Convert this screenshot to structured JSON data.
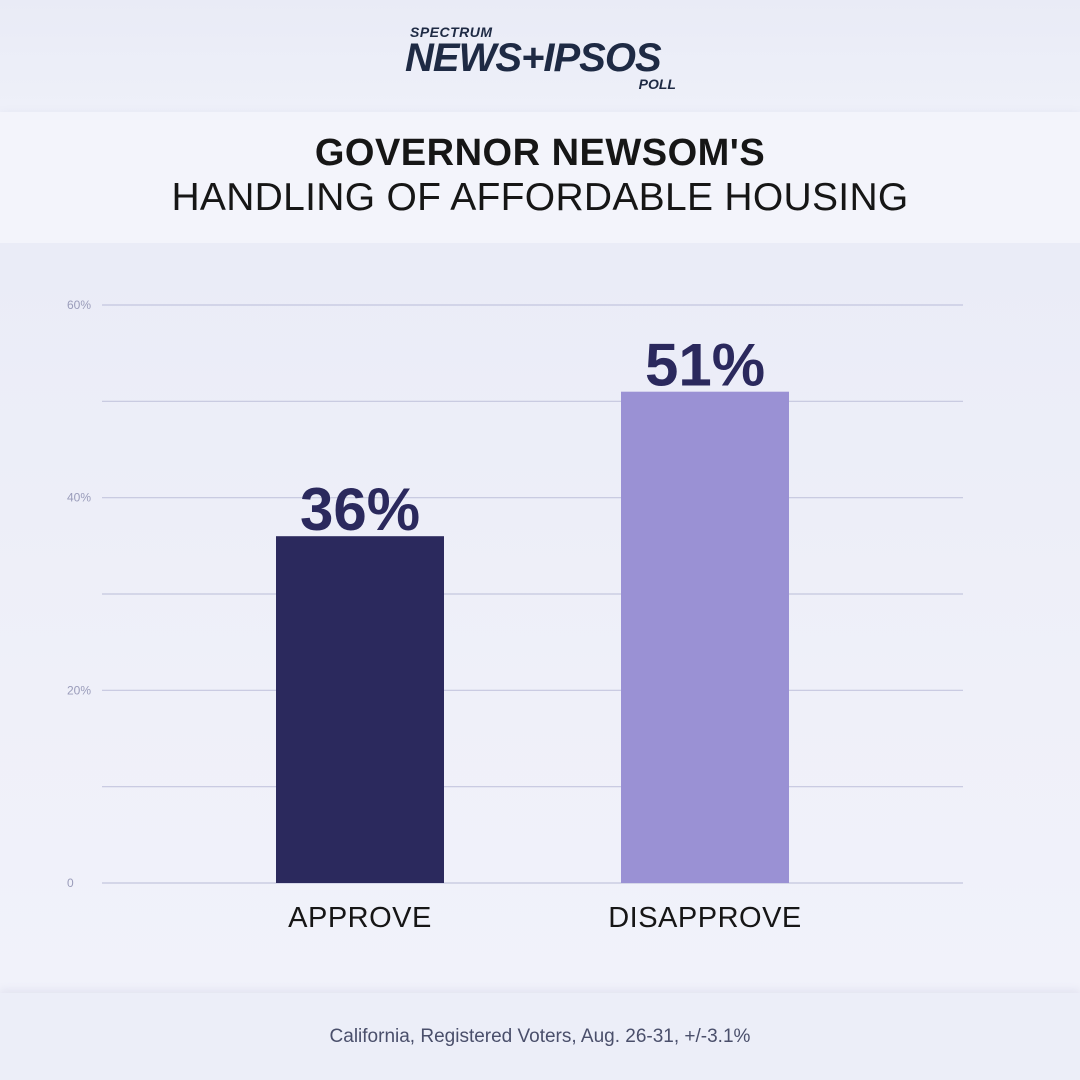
{
  "logo": {
    "spectrum": "SPECTRUM",
    "main": "NEWS+IPSOS",
    "poll": "POLL"
  },
  "title": {
    "line1": "GOVERNOR NEWSOM'S",
    "line2": "HANDLING OF AFFORDABLE HOUSING"
  },
  "footer": {
    "note": "California, Registered Voters, Aug. 26-31, +/-3.1%"
  },
  "chart_data": {
    "type": "bar",
    "categories": [
      "APPROVE",
      "DISAPPROVE"
    ],
    "values": [
      36,
      51
    ],
    "data_labels": [
      "36%",
      "51%"
    ],
    "colors": [
      "#2b295d",
      "#9a91d4"
    ],
    "ylim": [
      0,
      60
    ],
    "yticks": [
      0,
      20,
      40,
      60
    ],
    "ytick_labels": [
      "0",
      "20%",
      "40%",
      "60%"
    ],
    "gridlines": [
      0,
      10,
      20,
      30,
      40,
      50,
      60
    ],
    "grid": true,
    "title": "",
    "xlabel": "",
    "ylabel": ""
  }
}
